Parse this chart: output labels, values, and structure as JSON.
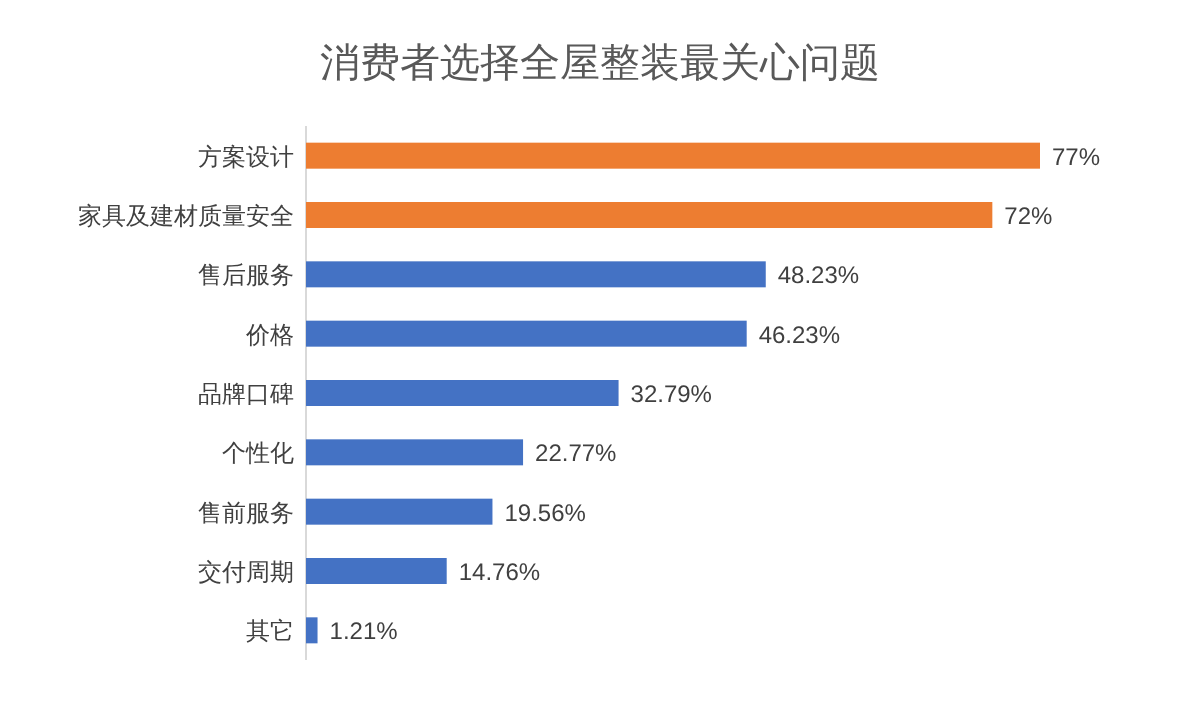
{
  "chart_data": {
    "type": "bar",
    "orientation": "horizontal",
    "title": "消费者选择全屋整装最关心问题",
    "categories": [
      "方案设计",
      "家具及建材质量安全",
      "售后服务",
      "价格",
      "品牌口碑",
      "个性化",
      "售前服务",
      "交付周期",
      "其它"
    ],
    "values": [
      77,
      72,
      48.23,
      46.23,
      32.79,
      22.77,
      19.56,
      14.76,
      1.21
    ],
    "colors": [
      "#ed7d31",
      "#ed7d31",
      "#4472c4",
      "#4472c4",
      "#4472c4",
      "#4472c4",
      "#4472c4",
      "#4472c4",
      "#4472c4"
    ],
    "value_labels": [
      "77%",
      "72%",
      "48.23%",
      "46.23%",
      "32.79%",
      "22.77%",
      "19.56%",
      "14.76%",
      "1.21%"
    ]
  }
}
